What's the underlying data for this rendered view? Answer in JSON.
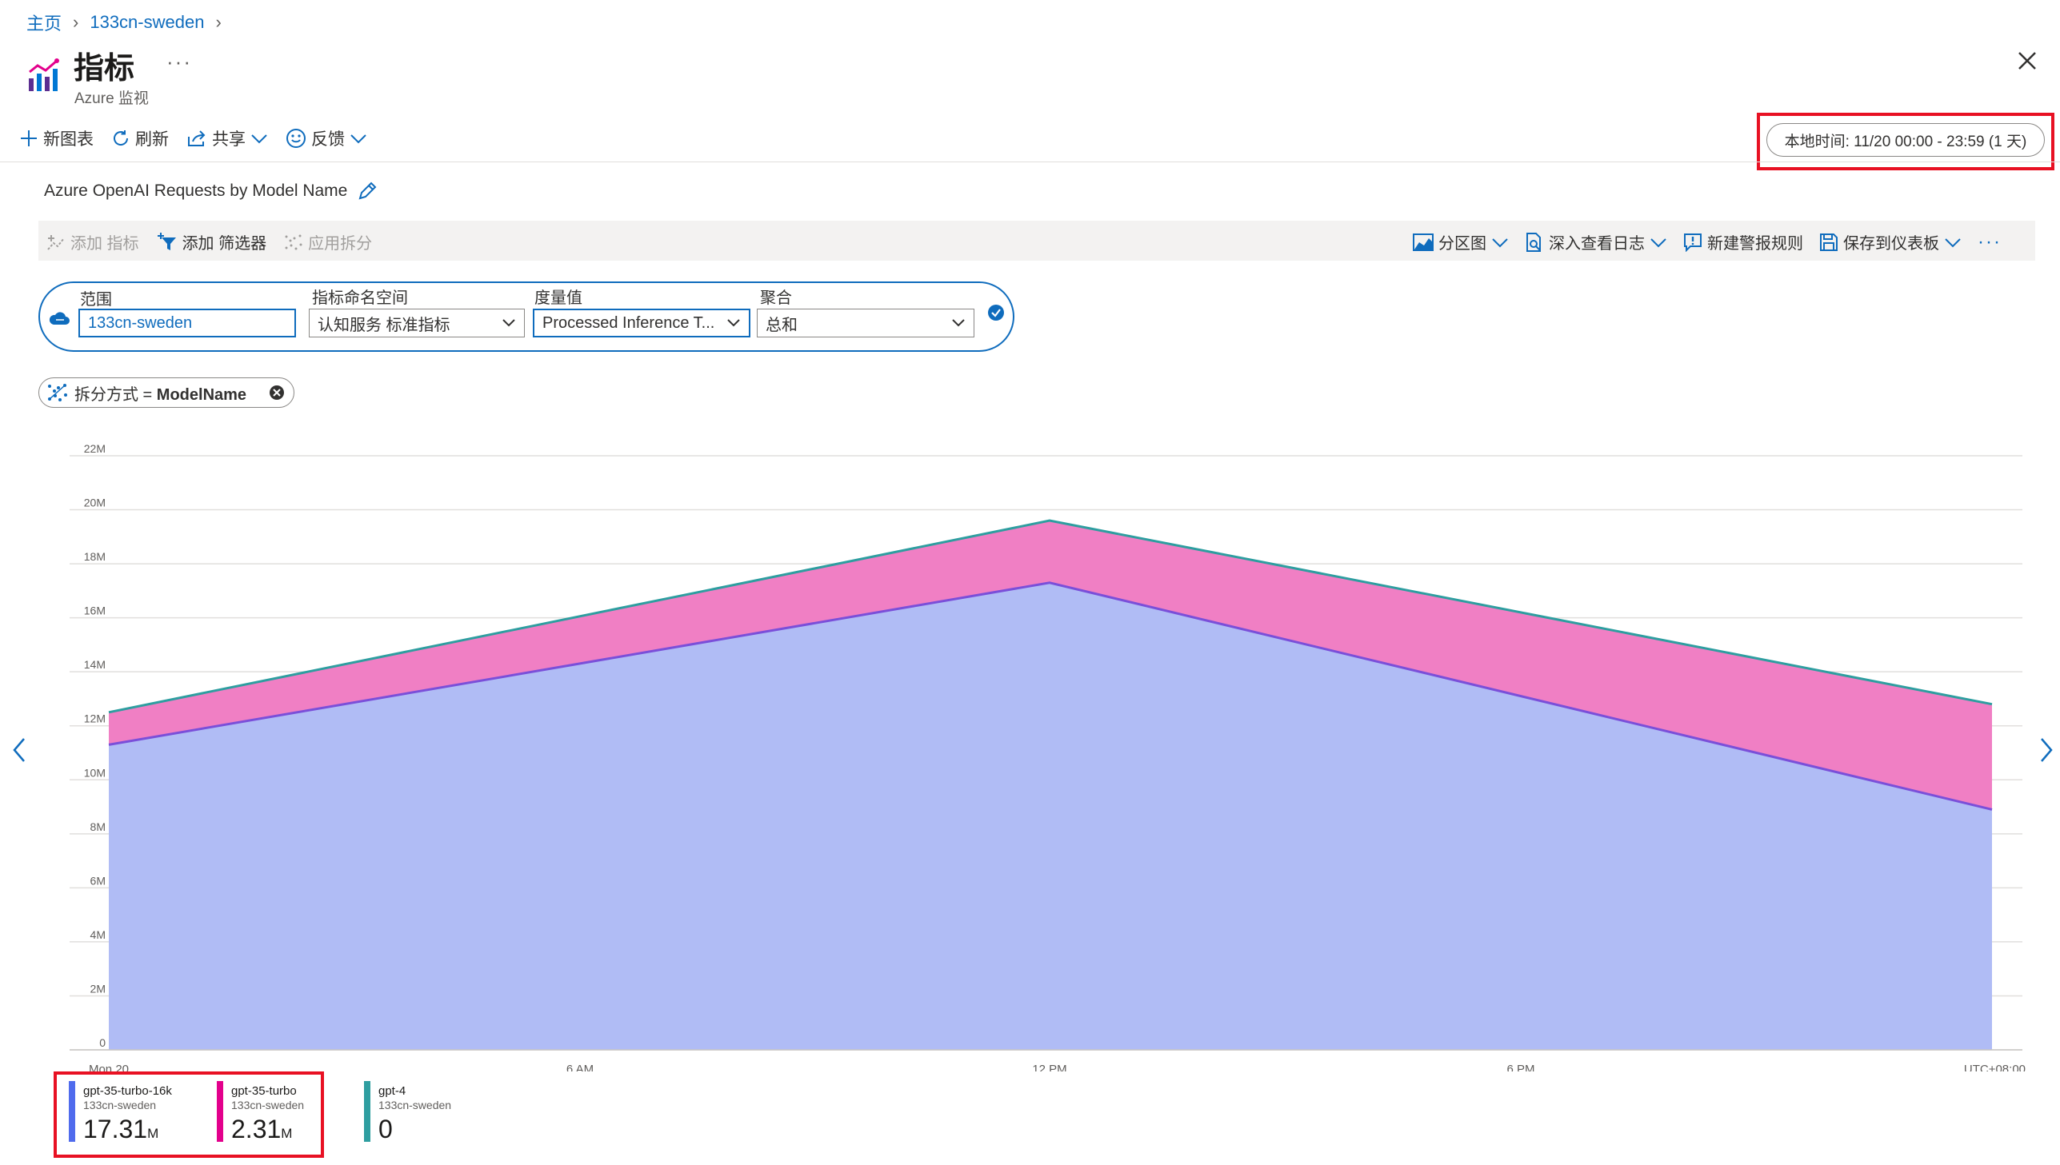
{
  "breadcrumb": {
    "home": "主页",
    "resource": "133cn-sweden"
  },
  "header": {
    "title": "指标",
    "subtitle": "Azure 监视",
    "more": "···"
  },
  "toolbar": {
    "new_chart": "新图表",
    "refresh": "刷新",
    "share": "共享",
    "feedback": "反馈",
    "time_range": "本地时间: 11/20 00:00 - 23:59 (1 天)"
  },
  "chart_title": "Azure OpenAI Requests by Model Name",
  "chart_toolbar": {
    "add_metric": "添加 指标",
    "add_filter": "添加 筛选器",
    "apply_split": "应用拆分",
    "area_chart": "分区图",
    "drill_logs": "深入查看日志",
    "new_alert": "新建警报规则",
    "save_dashboard": "保存到仪表板",
    "more": "···"
  },
  "metric_selector": {
    "scope_label": "范围",
    "scope_value": "133cn-sweden",
    "namespace_label": "指标命名空间",
    "namespace_value": "认知服务 标准指标",
    "metric_label": "度量值",
    "metric_value": "Processed Inference T...",
    "aggregation_label": "聚合",
    "aggregation_value": "总和"
  },
  "split": {
    "prefix": "拆分方式 = ",
    "value": "ModelName"
  },
  "chart_data": {
    "type": "area",
    "stacked": true,
    "x": [
      "Mon 20 00:00",
      "12 PM",
      "Mon 20 23:00"
    ],
    "x_ticks": [
      "Mon 20",
      "6 AM",
      "12 PM",
      "6 PM"
    ],
    "timezone_label": "UTC+08:00",
    "y_ticks": [
      "0",
      "2M",
      "4M",
      "6M",
      "8M",
      "10M",
      "12M",
      "14M",
      "16M",
      "18M",
      "20M",
      "22M"
    ],
    "ylim": [
      0,
      22000000
    ],
    "grid": true,
    "series": [
      {
        "name": "gpt-35-turbo-16k",
        "values": [
          11300000,
          17300000,
          8900000
        ],
        "color": "#b0bcf5"
      },
      {
        "name": "gpt-35-turbo",
        "values": [
          1200000,
          2300000,
          3900000
        ],
        "color": "#f07fc4"
      },
      {
        "name": "gpt-4",
        "values": [
          0,
          0,
          0
        ],
        "color": "#2e9ea0"
      }
    ]
  },
  "legend": [
    {
      "name": "gpt-35-turbo-16k",
      "resource": "133cn-sweden",
      "value": "17.31",
      "unit": "M",
      "color": "#4f6bed"
    },
    {
      "name": "gpt-35-turbo",
      "resource": "133cn-sweden",
      "value": "2.31",
      "unit": "M",
      "color": "#e3008c"
    },
    {
      "name": "gpt-4",
      "resource": "133cn-sweden",
      "value": "0",
      "unit": "",
      "color": "#2e9ea0"
    }
  ]
}
